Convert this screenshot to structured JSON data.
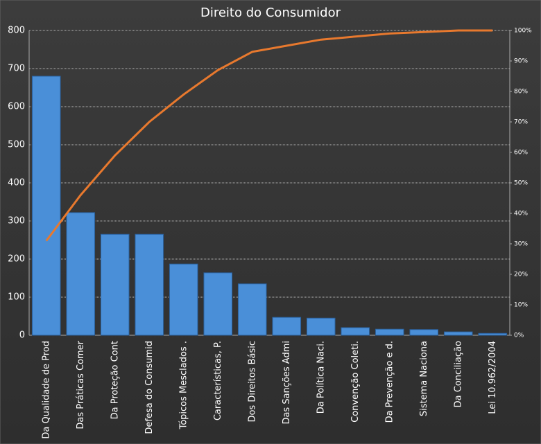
{
  "chart_data": {
    "type": "pareto",
    "title": "Direito do Consumidor",
    "categories": [
      "Da Qualidade de Prod",
      "Das Práticas Comer",
      "Da Proteção  Cont",
      "Defesa do Consumid",
      "Tópicos Mesclados .",
      "Características, P.",
      "Dos Direitos Básic",
      "Das Sanções Admi",
      "Da Política Naci.",
      "Convenção Coleti.",
      "Da Prevenção e d.",
      "Sistema Naciona",
      "Da Conciliação",
      "Lei 10.962/2004"
    ],
    "series": [
      {
        "type": "bar",
        "color": "#4a8fd8",
        "values": [
          680,
          322,
          265,
          265,
          187,
          164,
          135,
          47,
          45,
          20,
          16,
          15,
          9,
          5
        ]
      },
      {
        "type": "line",
        "color": "#e8792e",
        "axis": "y2",
        "values": [
          31,
          46,
          59,
          70,
          79,
          87,
          93,
          95,
          97,
          98,
          99,
          99.5,
          100,
          100
        ]
      }
    ],
    "ylim": [
      0,
      800
    ],
    "yticks": [
      0,
      100,
      200,
      300,
      400,
      500,
      600,
      700,
      800
    ],
    "y2lim": [
      0,
      100
    ],
    "y2ticks": [
      {
        "value": 0,
        "label": "0%"
      },
      {
        "value": 10,
        "label": "10%"
      },
      {
        "value": 20,
        "label": "20%"
      },
      {
        "value": 30,
        "label": "30%"
      },
      {
        "value": 40,
        "label": "40%"
      },
      {
        "value": 50,
        "label": "50%"
      },
      {
        "value": 60,
        "label": "60%"
      },
      {
        "value": 70,
        "label": "70%"
      },
      {
        "value": 80,
        "label": "80%"
      },
      {
        "value": 90,
        "label": "90%"
      },
      {
        "value": 100,
        "label": "100%"
      }
    ],
    "grid": true
  }
}
